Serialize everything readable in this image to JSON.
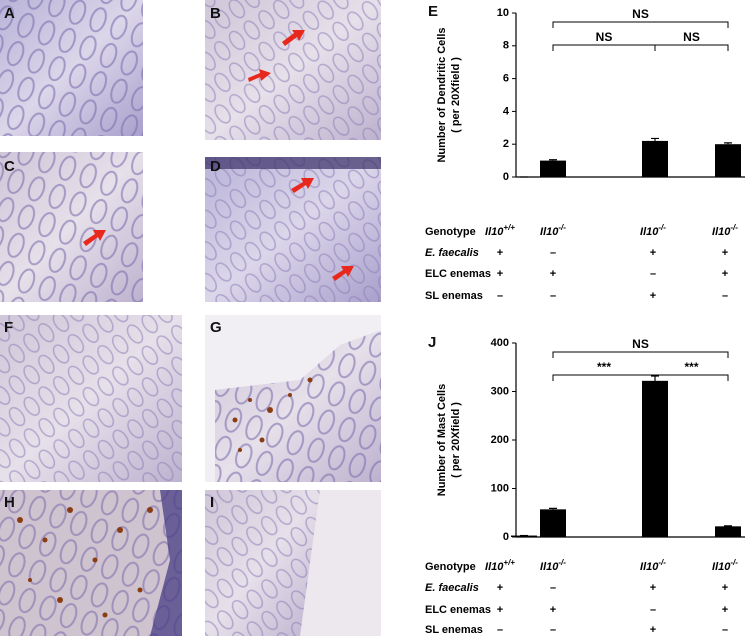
{
  "panels": [
    {
      "label": "A"
    },
    {
      "label": "B"
    },
    {
      "label": "C"
    },
    {
      "label": "D"
    },
    {
      "label": "F"
    },
    {
      "label": "G"
    },
    {
      "label": "H"
    },
    {
      "label": "I"
    }
  ],
  "chart_data": [
    {
      "type": "bar",
      "panel": "E",
      "ylabel": [
        "Number of Dendritic Cells",
        "( per 20Xfield )"
      ],
      "categories": [
        null,
        null,
        null,
        null
      ],
      "values": [
        0,
        1.0,
        2.2,
        2.0
      ],
      "errors": [
        0,
        0.05,
        0.15,
        0.08
      ],
      "color": "#000000",
      "ylim": [
        0,
        10
      ],
      "yticks": [
        0,
        2,
        4,
        6,
        8,
        10
      ],
      "brackets": [
        {
          "from": 1,
          "to": 3,
          "label": "NS"
        },
        {
          "from": 1,
          "to": 2,
          "label": "NS"
        },
        {
          "from": 2,
          "to": 3,
          "label": "NS"
        }
      ],
      "rows": [
        {
          "label": "Genotype",
          "cells": [
            {
              "text": "Il10",
              "sup": "+/+"
            },
            {
              "text": "Il10",
              "sup": "-/-"
            },
            {
              "text": "Il10",
              "sup": "-/-"
            },
            {
              "text": "Il10",
              "sup": "-/-"
            }
          ]
        },
        {
          "label": "E. faecalis",
          "cells": [
            "+",
            "–",
            "+",
            "+"
          ]
        },
        {
          "label": "ELC enemas",
          "cells": [
            "+",
            "+",
            "–",
            "+"
          ]
        },
        {
          "label": "SL enemas",
          "cells": [
            "–",
            "–",
            "+",
            "–"
          ]
        }
      ]
    },
    {
      "type": "bar",
      "panel": "J",
      "ylabel": [
        "Number of Mast Cells",
        "( per 20Xfield )"
      ],
      "categories": [
        null,
        null,
        null,
        null
      ],
      "values": [
        3,
        57,
        322,
        22
      ],
      "errors": [
        0,
        2,
        10,
        1
      ],
      "color": "#000000",
      "ylim": [
        0,
        400
      ],
      "yticks": [
        0,
        100,
        200,
        300,
        400
      ],
      "brackets": [
        {
          "from": 1,
          "to": 3,
          "label": "NS"
        },
        {
          "from": 1,
          "to": 2,
          "label": "***"
        },
        {
          "from": 2,
          "to": 3,
          "label": "***"
        }
      ],
      "rows": [
        {
          "label": "Genotype",
          "cells": [
            {
              "text": "Il10",
              "sup": "+/+"
            },
            {
              "text": "Il10",
              "sup": "-/-"
            },
            {
              "text": "Il10",
              "sup": "-/-"
            },
            {
              "text": "Il10",
              "sup": "-/-"
            }
          ]
        },
        {
          "label": "E. faecalis",
          "cells": [
            "+",
            "–",
            "+",
            "+"
          ]
        },
        {
          "label": "ELC enemas",
          "cells": [
            "+",
            "+",
            "–",
            "+"
          ]
        },
        {
          "label": "SL enemas",
          "cells": [
            "–",
            "–",
            "+",
            "–"
          ]
        }
      ]
    }
  ]
}
